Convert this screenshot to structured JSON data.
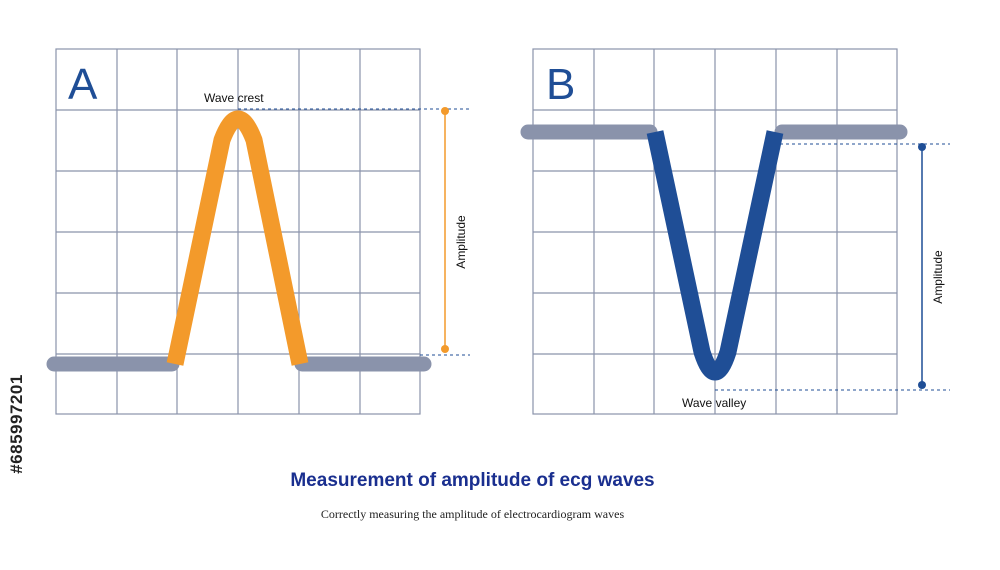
{
  "panels": [
    {
      "letter": "A",
      "peak_label": "Wave crest",
      "amplitude_label": "Amplitude",
      "wave_color": "#f39a2b",
      "baseline_color": "#8a93ab",
      "amplitude_color": "#f39a2b"
    },
    {
      "letter": "B",
      "peak_label": "Wave valley",
      "amplitude_label": "Amplitude",
      "wave_color": "#1f4e96",
      "baseline_color": "#8a93ab",
      "amplitude_color": "#1f4e96"
    }
  ],
  "caption": {
    "title": "Measurement of amplitude of ecg waves",
    "subtitle": "Correctly measuring the amplitude of electrocardiogram waves"
  },
  "side_id": "#685997201",
  "colors": {
    "grid": "#8a93ab",
    "guide": "#1f4e96",
    "title": "#1a2f8f"
  }
}
